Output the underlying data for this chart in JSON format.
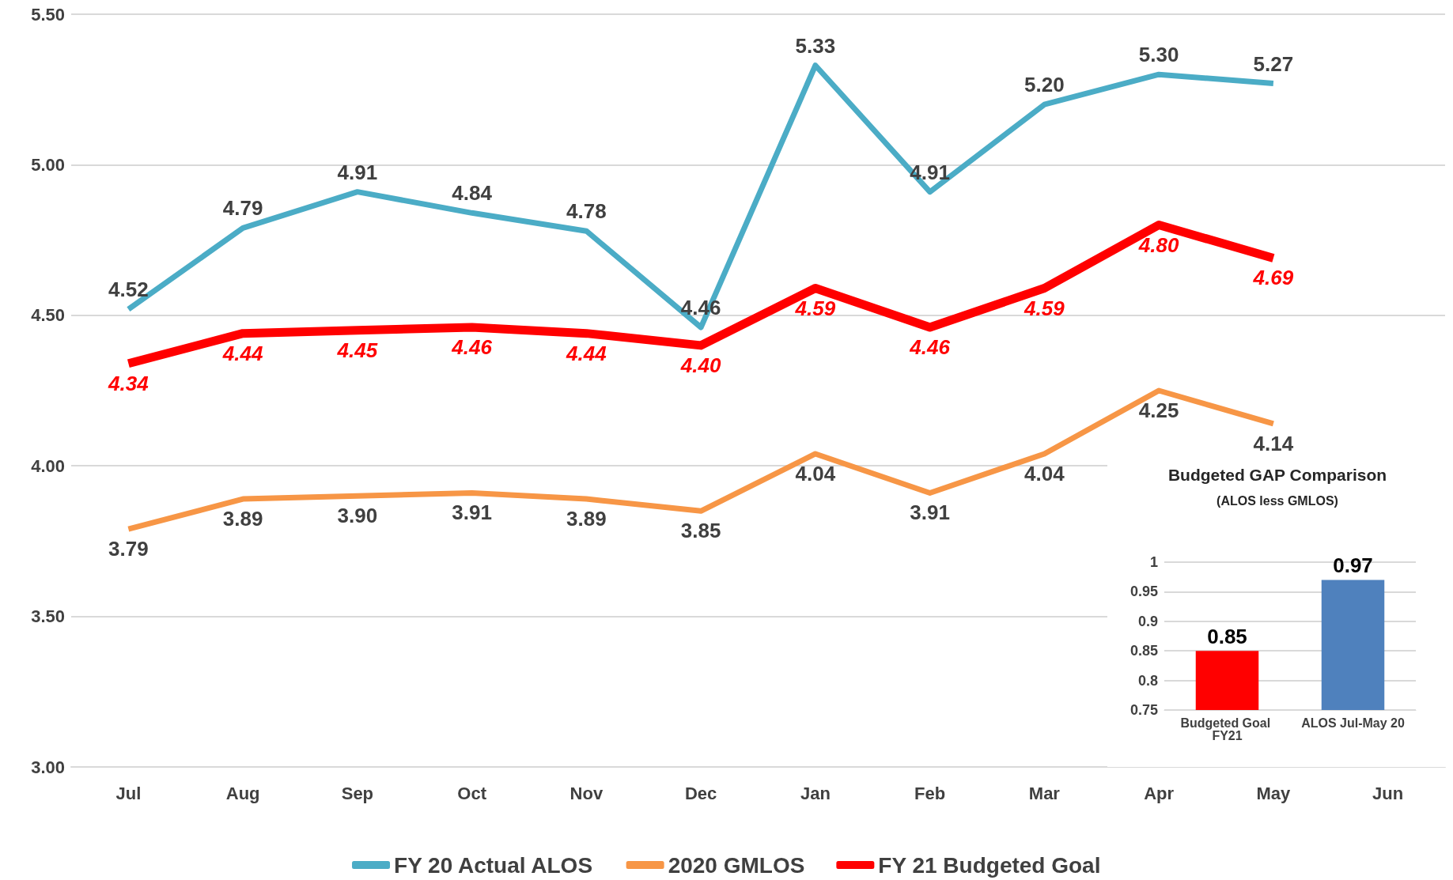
{
  "chart_data": [
    {
      "type": "line",
      "categories": [
        "Jul",
        "Aug",
        "Sep",
        "Oct",
        "Nov",
        "Dec",
        "Jan",
        "Feb",
        "Mar",
        "Apr",
        "May",
        "Jun"
      ],
      "series": [
        {
          "name": "FY 20 Actual ALOS",
          "color": "#4bacc6",
          "values": [
            4.52,
            4.79,
            4.91,
            4.84,
            4.78,
            4.46,
            5.33,
            4.91,
            5.2,
            5.3,
            5.27,
            null
          ],
          "value_labels": [
            "4.52",
            "4.79",
            "4.91",
            "4.84",
            "4.78",
            "4.46",
            "5.33",
            "4.91",
            "5.20",
            "5.30",
            "5.27",
            null
          ]
        },
        {
          "name": "2020 GMLOS",
          "color": "#f79646",
          "values": [
            3.79,
            3.89,
            3.9,
            3.91,
            3.89,
            3.85,
            4.04,
            3.91,
            4.04,
            4.25,
            4.14,
            null
          ],
          "value_labels": [
            "3.79",
            "3.89",
            "3.90",
            "3.91",
            "3.89",
            "3.85",
            "4.04",
            "3.91",
            "4.04",
            "4.25",
            "4.14",
            null
          ]
        },
        {
          "name": "FY 21 Budgeted Goal",
          "color": "#ff0000",
          "values": [
            4.34,
            4.44,
            4.45,
            4.46,
            4.44,
            4.4,
            4.59,
            4.46,
            4.59,
            4.8,
            4.69,
            null
          ],
          "value_labels": [
            "4.34",
            "4.44",
            "4.45",
            "4.46",
            "4.44",
            "4.40",
            "4.59",
            "4.46",
            "4.59",
            "4.80",
            "4.69",
            null
          ]
        }
      ],
      "ylim": [
        3,
        5.5
      ],
      "yticks": [
        {
          "value": 3,
          "label": "3.00"
        },
        {
          "value": 3.5,
          "label": "3.50"
        },
        {
          "value": 4,
          "label": "4.00"
        },
        {
          "value": 4.5,
          "label": "4.50"
        },
        {
          "value": 5,
          "label": "5.00"
        },
        {
          "value": 5.5,
          "label": "5.50"
        }
      ],
      "grid": "y",
      "legend": "bottom",
      "marker": "none"
    },
    {
      "type": "bar",
      "title": "Budgeted GAP Comparison",
      "subtitle": "(ALOS less GMLOS)",
      "categories": [
        "Budgeted Goal FY21",
        "ALOS Jul-May 20"
      ],
      "values": [
        0.85,
        0.97
      ],
      "colors": [
        "#ff0000",
        "#4f81bd"
      ],
      "ylim": [
        0.75,
        1
      ],
      "yticks": [
        0.75,
        0.8,
        0.85,
        0.9,
        0.95,
        1
      ],
      "grid": "y",
      "data_labels": true
    }
  ]
}
